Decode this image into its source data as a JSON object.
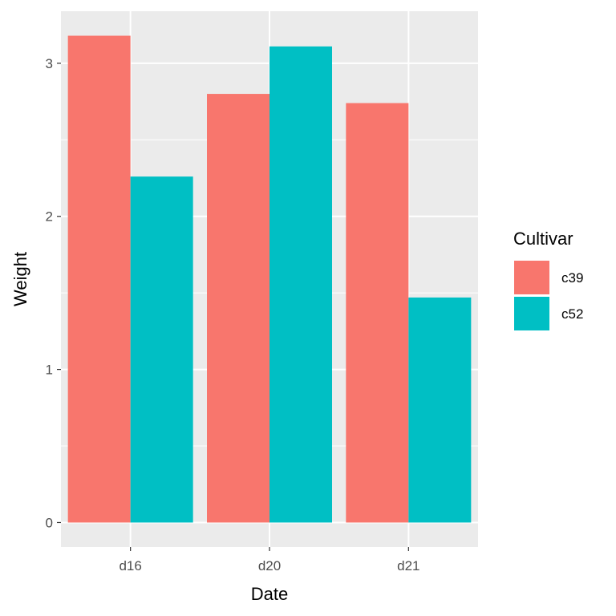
{
  "chart_data": {
    "type": "bar",
    "title": "",
    "xlabel": "Date",
    "ylabel": "Weight",
    "categories": [
      "d16",
      "d20",
      "d21"
    ],
    "series": [
      {
        "name": "c39",
        "values": [
          3.18,
          2.8,
          2.74
        ],
        "color": "#F8766D"
      },
      {
        "name": "c52",
        "values": [
          2.26,
          3.11,
          1.47
        ],
        "color": "#00BFC4"
      }
    ],
    "ylim": [
      -0.16,
      3.34
    ],
    "yticks": [
      0,
      1,
      2,
      3
    ],
    "ytick_labels": [
      "0",
      "1",
      "2",
      "3"
    ],
    "grid": true,
    "legend": {
      "title": "Cultivar",
      "position": "right"
    },
    "panel_background": "#EBEBEB",
    "grid_color": "#FFFFFF"
  }
}
